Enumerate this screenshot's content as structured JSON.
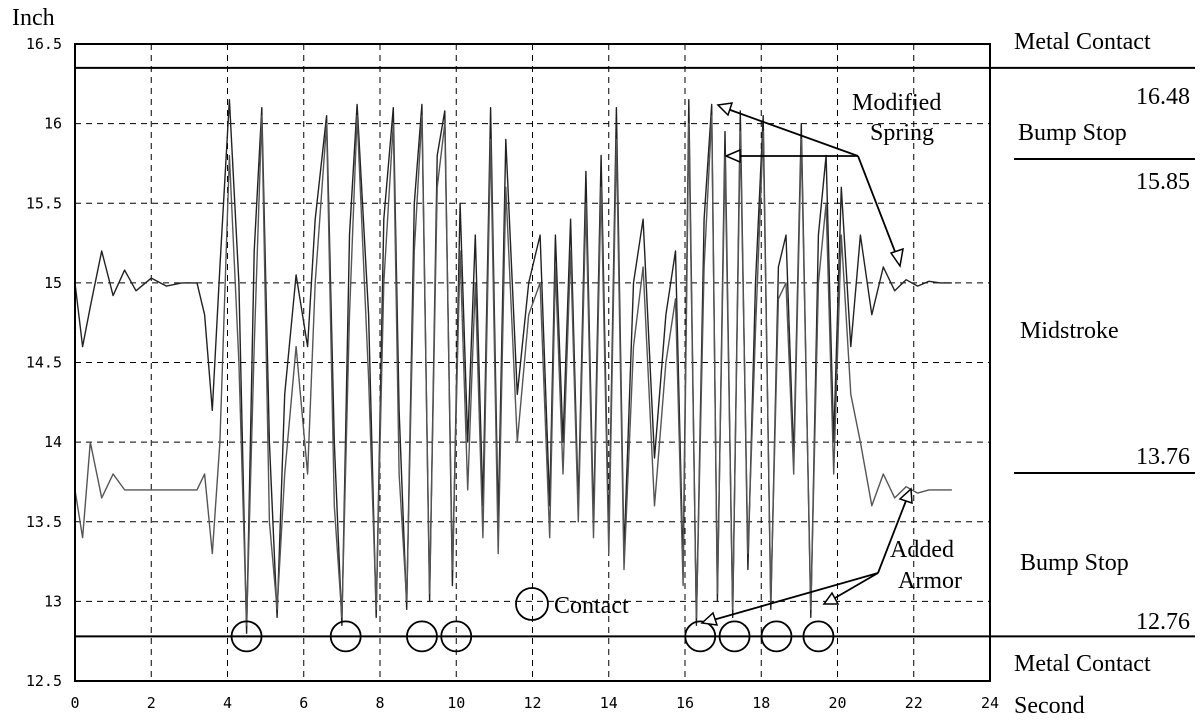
{
  "chart_data": {
    "type": "line",
    "ylabel": "Inch",
    "xlabel": "Second",
    "xlim": [
      0,
      24
    ],
    "ylim": [
      12.5,
      16.5
    ],
    "x_ticks": [
      0,
      2,
      4,
      6,
      8,
      10,
      12,
      14,
      16,
      18,
      20,
      22,
      24
    ],
    "y_ticks": [
      12.5,
      13,
      13.5,
      14,
      14.5,
      15,
      15.5,
      16,
      16.5
    ],
    "x_tick_labels": [
      "0",
      "2",
      "4",
      "6",
      "8",
      "10",
      "12",
      "14",
      "16",
      "18",
      "20",
      "22",
      "24"
    ],
    "y_tick_labels": [
      "12.5",
      "13",
      "13.5",
      "14",
      "14.5",
      "15",
      "15.5",
      "16",
      "16.5"
    ],
    "grid": true,
    "reference_lines": [
      {
        "y": 16.35,
        "label": "Metal Contact"
      },
      {
        "y": 12.78,
        "label": "Metal Contact"
      }
    ],
    "zones": {
      "metal_contact_top": "Metal Contact",
      "value_16_48": "16.48",
      "bump_stop_top": "Bump Stop",
      "value_15_85": "15.85",
      "midstroke": "Midstroke",
      "value_13_76": "13.76",
      "bump_stop_bottom": "Bump Stop",
      "value_12_76": "12.76",
      "metal_contact_bottom": "Metal Contact"
    },
    "annotations": {
      "modified_line1": "Modified",
      "modified_line2": "Spring",
      "added_line1": "Added",
      "added_line2": "Armor",
      "contact": "Contact"
    },
    "contact_times": [
      4.5,
      7.1,
      9.1,
      10.0,
      16.4,
      17.3,
      18.4,
      19.5
    ],
    "series": [
      {
        "color": "#222222",
        "x": [
          0,
          0.2,
          0.4,
          0.7,
          1.0,
          1.3,
          1.6,
          2.0,
          2.4,
          2.8,
          3.2,
          3.4,
          3.6,
          3.8,
          4.05,
          4.3,
          4.5,
          4.7,
          4.9,
          5.1,
          5.3,
          5.5,
          5.8,
          6.1,
          6.3,
          6.6,
          6.8,
          7.0,
          7.2,
          7.4,
          7.7,
          7.9,
          8.1,
          8.35,
          8.5,
          8.7,
          8.9,
          9.1,
          9.3,
          9.5,
          9.7,
          9.9,
          10.1,
          10.3,
          10.5,
          10.7,
          10.9,
          11.1,
          11.3,
          11.6,
          11.9,
          12.2,
          12.45,
          12.6,
          12.8,
          13.0,
          13.2,
          13.4,
          13.6,
          13.8,
          14.0,
          14.2,
          14.4,
          14.65,
          14.9,
          15.2,
          15.5,
          15.75,
          15.95,
          16.1,
          16.3,
          16.5,
          16.7,
          16.85,
          17.05,
          17.25,
          17.45,
          17.65,
          17.85,
          18.05,
          18.25,
          18.45,
          18.65,
          18.85,
          19.05,
          19.3,
          19.5,
          19.7,
          19.9,
          20.1,
          20.35,
          20.6,
          20.9,
          21.2,
          21.5,
          21.8,
          22.1,
          22.4,
          22.7,
          23.0
        ],
        "y": [
          15.0,
          14.6,
          14.85,
          15.2,
          14.92,
          15.08,
          14.95,
          15.03,
          14.98,
          15.0,
          15.0,
          14.8,
          14.2,
          15.1,
          16.15,
          15.0,
          12.8,
          15.2,
          16.1,
          14.0,
          12.9,
          14.3,
          15.05,
          14.6,
          15.4,
          16.05,
          14.0,
          12.85,
          15.3,
          16.12,
          14.8,
          12.9,
          15.4,
          16.1,
          14.2,
          12.95,
          15.5,
          16.12,
          13.0,
          15.8,
          16.08,
          13.1,
          15.5,
          14.0,
          15.3,
          13.6,
          16.1,
          13.5,
          15.9,
          14.3,
          15.0,
          15.3,
          13.6,
          15.3,
          14.0,
          15.4,
          13.6,
          15.7,
          13.5,
          15.8,
          13.4,
          16.1,
          13.3,
          15.0,
          15.4,
          13.9,
          14.8,
          15.2,
          13.2,
          16.15,
          12.85,
          15.4,
          16.12,
          13.0,
          15.95,
          12.9,
          16.08,
          13.2,
          15.0,
          16.05,
          12.95,
          15.1,
          15.3,
          13.9,
          16.0,
          12.9,
          15.3,
          15.8,
          14.0,
          15.6,
          14.6,
          15.3,
          14.8,
          15.1,
          14.95,
          15.02,
          14.98,
          15.01,
          15.0,
          15.0
        ]
      },
      {
        "color": "#555555",
        "x": [
          0,
          0.2,
          0.4,
          0.7,
          1.0,
          1.3,
          1.6,
          2.0,
          2.4,
          2.8,
          3.2,
          3.4,
          3.6,
          3.8,
          4.05,
          4.3,
          4.5,
          4.7,
          4.9,
          5.1,
          5.3,
          5.5,
          5.8,
          6.1,
          6.3,
          6.6,
          6.8,
          7.0,
          7.2,
          7.4,
          7.7,
          7.9,
          8.1,
          8.35,
          8.5,
          8.7,
          8.9,
          9.1,
          9.3,
          9.5,
          9.7,
          9.9,
          10.1,
          10.3,
          10.5,
          10.7,
          10.9,
          11.1,
          11.3,
          11.6,
          11.9,
          12.2,
          12.45,
          12.6,
          12.8,
          13.0,
          13.2,
          13.4,
          13.6,
          13.8,
          14.0,
          14.2,
          14.4,
          14.65,
          14.9,
          15.2,
          15.5,
          15.75,
          15.95,
          16.1,
          16.3,
          16.5,
          16.7,
          16.85,
          17.05,
          17.25,
          17.45,
          17.65,
          17.85,
          18.05,
          18.25,
          18.45,
          18.65,
          18.85,
          19.05,
          19.3,
          19.5,
          19.7,
          19.9,
          20.1,
          20.35,
          20.6,
          20.9,
          21.2,
          21.5,
          21.8,
          22.1,
          22.4,
          22.7,
          23.0
        ],
        "y": [
          13.7,
          13.4,
          14.0,
          13.65,
          13.8,
          13.7,
          13.7,
          13.7,
          13.7,
          13.7,
          13.7,
          13.8,
          13.3,
          14.0,
          15.8,
          14.5,
          12.85,
          14.6,
          16.05,
          13.5,
          12.95,
          13.8,
          14.6,
          13.8,
          15.0,
          16.0,
          13.6,
          12.9,
          14.8,
          16.05,
          14.4,
          12.95,
          15.0,
          16.0,
          13.8,
          13.0,
          15.2,
          16.05,
          13.05,
          15.6,
          16.0,
          13.2,
          15.2,
          13.7,
          15.0,
          13.4,
          15.9,
          13.3,
          15.6,
          14.0,
          14.8,
          15.0,
          13.4,
          15.1,
          13.8,
          15.2,
          13.5,
          15.5,
          13.4,
          15.6,
          13.3,
          15.9,
          13.2,
          14.6,
          15.1,
          13.6,
          14.5,
          14.9,
          13.1,
          16.0,
          12.9,
          15.1,
          16.05,
          13.05,
          15.8,
          12.95,
          15.95,
          13.3,
          14.7,
          15.95,
          13.0,
          14.9,
          15.0,
          13.8,
          15.9,
          12.95,
          15.0,
          15.5,
          13.8,
          15.3,
          14.3,
          14.0,
          13.6,
          13.8,
          13.65,
          13.72,
          13.68,
          13.7,
          13.7,
          13.7
        ]
      }
    ]
  }
}
